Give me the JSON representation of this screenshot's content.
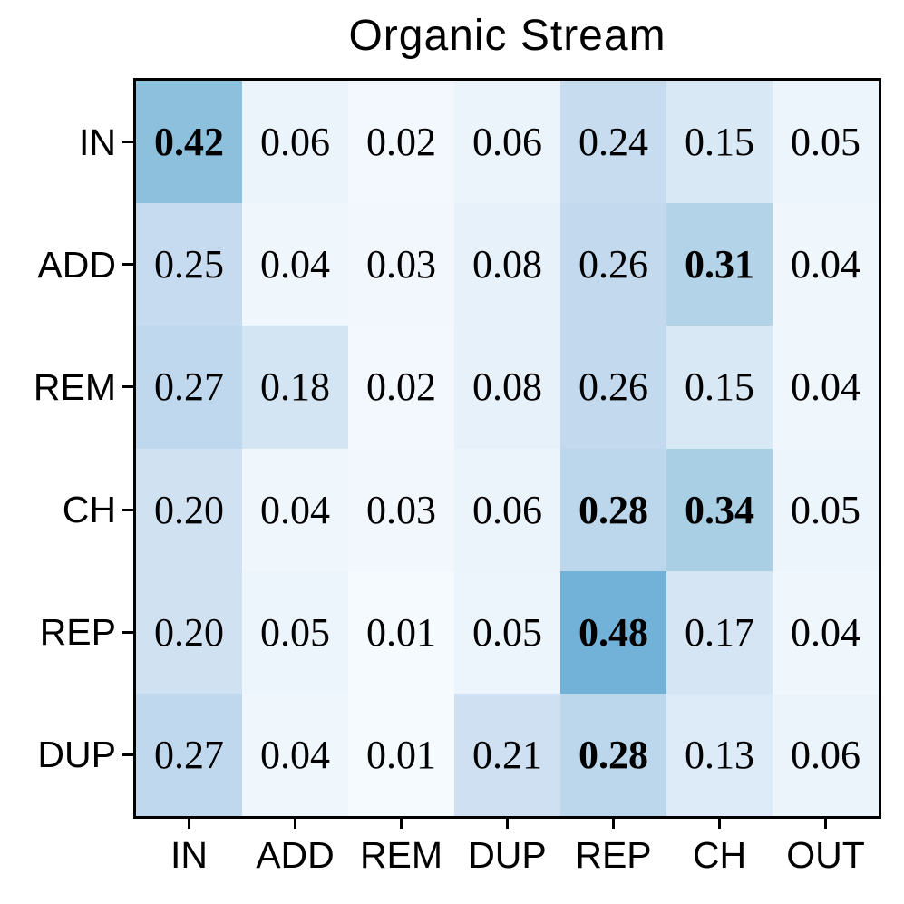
{
  "chart_data": {
    "type": "heatmap",
    "title": "Organic Stream",
    "row_labels": [
      "IN",
      "ADD",
      "REM",
      "CH",
      "REP",
      "DUP"
    ],
    "col_labels": [
      "IN",
      "ADD",
      "REM",
      "DUP",
      "REP",
      "CH",
      "OUT"
    ],
    "values": [
      [
        0.42,
        0.06,
        0.02,
        0.06,
        0.24,
        0.15,
        0.05
      ],
      [
        0.25,
        0.04,
        0.03,
        0.08,
        0.26,
        0.31,
        0.04
      ],
      [
        0.27,
        0.18,
        0.02,
        0.08,
        0.26,
        0.15,
        0.04
      ],
      [
        0.2,
        0.04,
        0.03,
        0.06,
        0.28,
        0.34,
        0.05
      ],
      [
        0.2,
        0.05,
        0.01,
        0.05,
        0.48,
        0.17,
        0.04
      ],
      [
        0.27,
        0.04,
        0.01,
        0.21,
        0.28,
        0.13,
        0.06
      ]
    ],
    "value_decimals": 2,
    "bold_threshold": 0.28,
    "colormap": {
      "name": "Blues",
      "vmin": 0,
      "vmax": 1,
      "anchors": [
        "#f7fbff",
        "#deebf7",
        "#c6dbef",
        "#9ecae1",
        "#6baed6",
        "#4292c6",
        "#2171b5",
        "#08519c",
        "#08306b"
      ]
    },
    "text_color": "#000000",
    "axis_color": "#000000",
    "background_color": "#ffffff",
    "grid": "off",
    "legend": "none"
  }
}
